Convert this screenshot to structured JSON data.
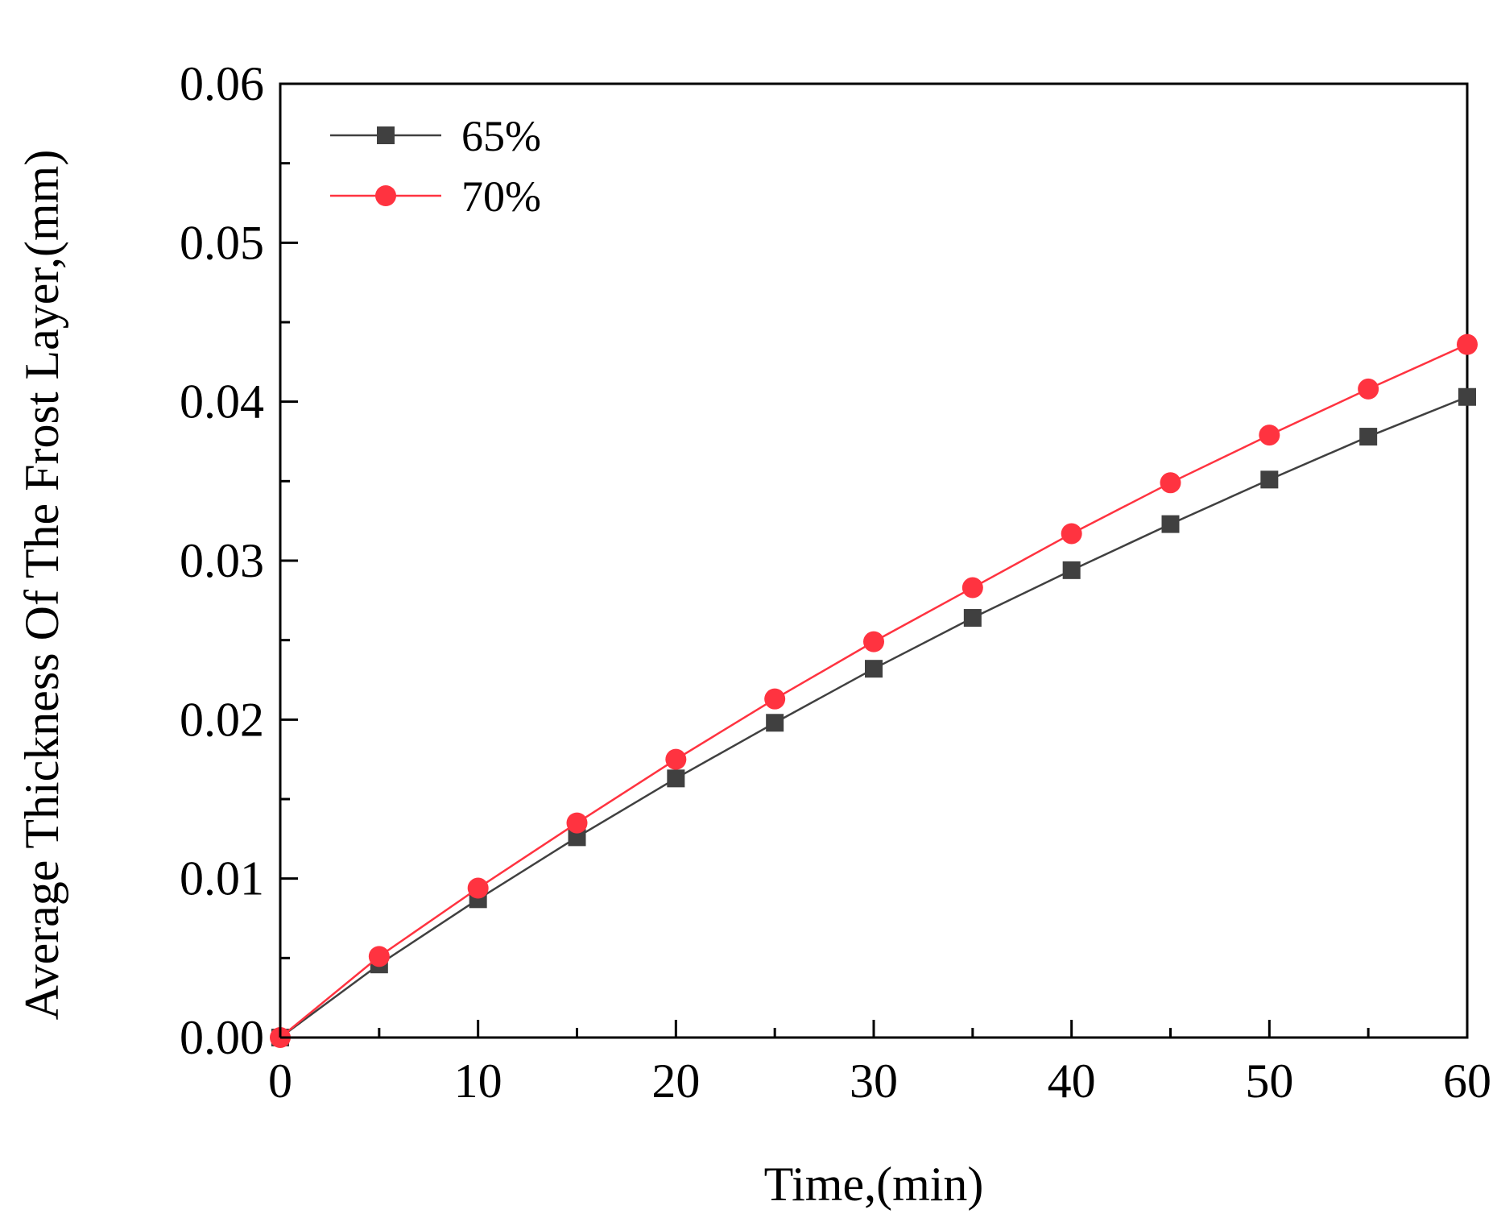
{
  "chart_data": {
    "type": "line",
    "title": "",
    "xlabel": "Time,(min)",
    "ylabel": "Average Thickness Of The Frost Layer,(mm)",
    "xlim": [
      0,
      60
    ],
    "ylim": [
      0,
      0.06
    ],
    "x_ticks": [
      0,
      10,
      20,
      30,
      40,
      50,
      60
    ],
    "x_tick_labels": [
      "0",
      "10",
      "20",
      "30",
      "40",
      "50",
      "60"
    ],
    "y_ticks": [
      0,
      0.01,
      0.02,
      0.03,
      0.04,
      0.05,
      0.06
    ],
    "y_tick_labels": [
      "0.00",
      "0.01",
      "0.02",
      "0.03",
      "0.04",
      "0.05",
      "0.06"
    ],
    "grid": false,
    "legend_position": "top-left",
    "x": [
      0,
      5,
      10,
      15,
      20,
      25,
      30,
      35,
      40,
      45,
      50,
      55,
      60
    ],
    "series": [
      {
        "name": "65%",
        "color": "#404040",
        "marker": "square",
        "values": [
          0.0,
          0.0046,
          0.0087,
          0.0126,
          0.0163,
          0.0198,
          0.0232,
          0.0264,
          0.0294,
          0.0323,
          0.0351,
          0.0378,
          0.0403
        ]
      },
      {
        "name": "70%",
        "color": "#ff3340",
        "marker": "circle",
        "values": [
          0.0,
          0.0051,
          0.0094,
          0.0135,
          0.0175,
          0.0213,
          0.0249,
          0.0283,
          0.0317,
          0.0349,
          0.0379,
          0.0408,
          0.0436
        ]
      }
    ]
  }
}
